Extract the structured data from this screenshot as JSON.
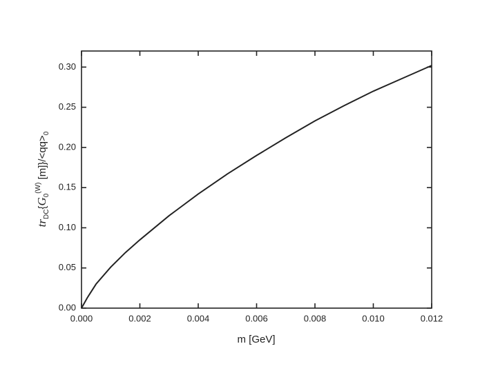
{
  "chart_data": {
    "type": "line",
    "xlabel": "m [GeV]",
    "ylabel_parts": [
      "tr",
      "DC",
      "{",
      "G",
      "0",
      "(W)",
      " [m]}/<qq>",
      "0"
    ],
    "x": [
      0,
      0.0002,
      0.0005,
      0.001,
      0.0015,
      0.002,
      0.003,
      0.004,
      0.005,
      0.006,
      0.007,
      0.008,
      0.009,
      0.01,
      0.011,
      0.012
    ],
    "series": [
      {
        "color": "#222222",
        "values": [
          0,
          0.013,
          0.03,
          0.051,
          0.069,
          0.085,
          0.115,
          0.142,
          0.167,
          0.19,
          0.212,
          0.233,
          0.252,
          0.27,
          0.286,
          0.302
        ]
      }
    ],
    "xlim": [
      0,
      0.012
    ],
    "ylim": [
      0,
      0.32
    ],
    "xticks": [
      {
        "value": 0,
        "label": "0.000"
      },
      0.002,
      0.004,
      0.006,
      0.008,
      {
        "value": 0.01,
        "label": "0.010"
      },
      0.012
    ],
    "yticks": [
      {
        "value": 0,
        "label": "0.00"
      },
      0.05,
      {
        "value": 0.1,
        "label": "0.10"
      },
      0.15,
      {
        "value": 0.2,
        "label": "0.20"
      },
      0.25,
      {
        "value": 0.3,
        "label": "0.30"
      }
    ]
  }
}
